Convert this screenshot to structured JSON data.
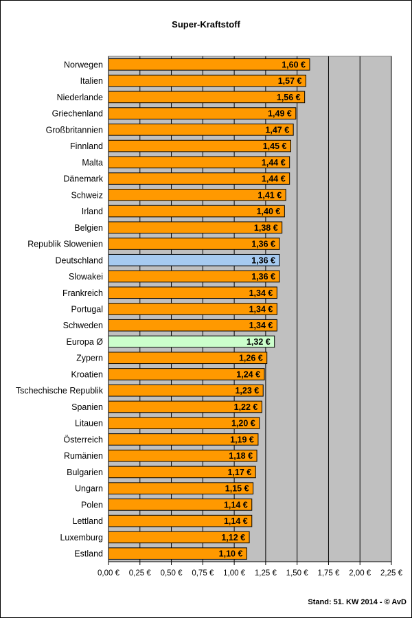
{
  "chart_data": {
    "type": "bar",
    "orientation": "horizontal",
    "title": "Super-Kraftstoff",
    "xlabel": "",
    "ylabel": "",
    "xlim": [
      0,
      2.25
    ],
    "tick_values": [
      0,
      0.25,
      0.5,
      0.75,
      1.0,
      1.25,
      1.5,
      1.75,
      2.0,
      2.25
    ],
    "tick_labels": [
      "0,00 €",
      "0,25 €",
      "0,50 €",
      "0,75 €",
      "1,00 €",
      "1,25 €",
      "1,50 €",
      "1,75 €",
      "2,00 €",
      "2,25 €"
    ],
    "categories": [
      "Norwegen",
      "Italien",
      "Niederlande",
      "Griechenland",
      "Großbritannien",
      "Finnland",
      "Malta",
      "Dänemark",
      "Schweiz",
      "Irland",
      "Belgien",
      "Republik Slowenien",
      "Deutschland",
      "Slowakei",
      "Frankreich",
      "Portugal",
      "Schweden",
      "Europa Ø",
      "Zypern",
      "Kroatien",
      "Tschechische Republik",
      "Spanien",
      "Litauen",
      "Österreich",
      "Rumänien",
      "Bulgarien",
      "Ungarn",
      "Polen",
      "Lettland",
      "Luxemburg",
      "Estland"
    ],
    "values": [
      1.6,
      1.57,
      1.56,
      1.49,
      1.47,
      1.45,
      1.44,
      1.44,
      1.41,
      1.4,
      1.38,
      1.36,
      1.36,
      1.36,
      1.34,
      1.34,
      1.34,
      1.32,
      1.26,
      1.24,
      1.23,
      1.22,
      1.2,
      1.19,
      1.18,
      1.17,
      1.15,
      1.14,
      1.14,
      1.12,
      1.1
    ],
    "value_labels": [
      "1,60 €",
      "1,57 €",
      "1,56 €",
      "1,49 €",
      "1,47 €",
      "1,45 €",
      "1,44 €",
      "1,44 €",
      "1,41 €",
      "1,40 €",
      "1,38 €",
      "1,36 €",
      "1,36 €",
      "1,36 €",
      "1,34 €",
      "1,34 €",
      "1,34 €",
      "1,32 €",
      "1,26 €",
      "1,24 €",
      "1,23 €",
      "1,22 €",
      "1,20 €",
      "1,19 €",
      "1,18 €",
      "1,17 €",
      "1,15 €",
      "1,14 €",
      "1,14 €",
      "1,12 €",
      "1,10 €"
    ],
    "highlights": {
      "Deutschland": "#a6caf0",
      "Europa Ø": "#ccffcc"
    },
    "bar_color": "#ff9900",
    "plot_background": "#c0c0c0",
    "grid": true,
    "legend": "none"
  },
  "footer": {
    "note": "Stand: 51. KW 2014 - © AvD"
  }
}
